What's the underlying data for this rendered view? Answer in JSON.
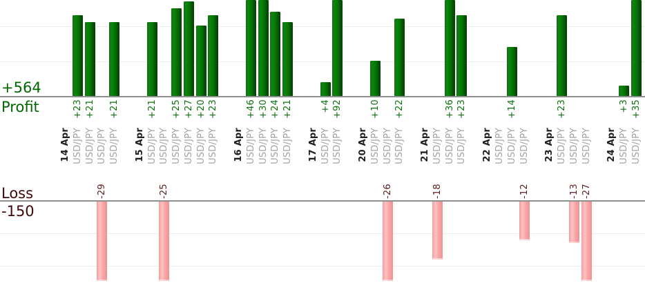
{
  "chart_data": {
    "type": "bar",
    "layout": "dual horizontal-axis chart: profit bars grow up from upper axis, loss bars grow down from lower axis; tall bars clipped by visible area; x labels rotated 90deg",
    "profit": {
      "axis_title": "Profit",
      "display_total": "+564",
      "total": 564,
      "gridline_values": [
        10,
        20
      ]
    },
    "loss": {
      "axis_title": "Loss",
      "display_total": "-150",
      "total": -150,
      "gridline_values": [
        -10,
        -20
      ]
    },
    "groups": [
      {
        "date": "14 Apr",
        "trades": [
          {
            "symbol": "USD/JPY",
            "value": 23,
            "label": "+23"
          },
          {
            "symbol": "USD/JPY",
            "value": 21,
            "label": "+21"
          },
          {
            "symbol": "USD/JPY",
            "value": -29,
            "label": "-29"
          },
          {
            "symbol": "USD/JPY",
            "value": 21,
            "label": "+21"
          }
        ]
      },
      {
        "date": "15 Apr",
        "trades": [
          {
            "symbol": "USD/JPY",
            "value": 21,
            "label": "+21"
          },
          {
            "symbol": "USD/JPY",
            "value": -25,
            "label": "-25"
          },
          {
            "symbol": "USD/JPY",
            "value": 25,
            "label": "+25"
          },
          {
            "symbol": "USD/JPY",
            "value": 27,
            "label": "+27"
          },
          {
            "symbol": "USD/JPY",
            "value": 20,
            "label": "+20"
          },
          {
            "symbol": "USD/JPY",
            "value": 23,
            "label": "+23"
          }
        ]
      },
      {
        "date": "16 Apr",
        "trades": [
          {
            "symbol": "USD/JPY",
            "value": 46,
            "label": "+46"
          },
          {
            "symbol": "USD/JPY",
            "value": 30,
            "label": "+30"
          },
          {
            "symbol": "USD/JPY",
            "value": 24,
            "label": "+24"
          },
          {
            "symbol": "USD/JPY",
            "value": 21,
            "label": "+21"
          }
        ]
      },
      {
        "date": "17 Apr",
        "trades": [
          {
            "symbol": "USD/JPY",
            "value": 4,
            "label": "+4"
          },
          {
            "symbol": "USD/JPY",
            "value": 92,
            "label": "+92"
          }
        ]
      },
      {
        "date": "20 Apr",
        "trades": [
          {
            "symbol": "USD/JPY",
            "value": 10,
            "label": "+10"
          },
          {
            "symbol": "USD/JPY",
            "value": -26,
            "label": "-26"
          },
          {
            "symbol": "USD/JPY",
            "value": 22,
            "label": "+22"
          }
        ]
      },
      {
        "date": "21 Apr",
        "trades": [
          {
            "symbol": "USD/JPY",
            "value": -18,
            "label": "-18"
          },
          {
            "symbol": "USD/JPY",
            "value": 36,
            "label": "+36"
          },
          {
            "symbol": "USD/JPY",
            "value": 23,
            "label": "+23"
          }
        ]
      },
      {
        "date": "22 Apr",
        "trades": [
          {
            "symbol": "USD/JPY",
            "value": 0,
            "label": ""
          },
          {
            "symbol": "USD/JPY",
            "value": 14,
            "label": "+14"
          },
          {
            "symbol": "USD/JPY",
            "value": -12,
            "label": "-12"
          }
        ]
      },
      {
        "date": "23 Apr",
        "trades": [
          {
            "symbol": "USD/JPY",
            "value": 23,
            "label": "+23"
          },
          {
            "symbol": "USD/JPY",
            "value": -13,
            "label": "-13"
          },
          {
            "symbol": "USD/JPY",
            "value": -27,
            "label": "-27"
          }
        ]
      },
      {
        "date": "24 Apr",
        "trades": [
          {
            "symbol": "USD/JPY",
            "value": 3,
            "label": "+3"
          },
          {
            "symbol": "USD/JPY",
            "value": 35,
            "label": "+35"
          }
        ]
      }
    ]
  },
  "colors": {
    "profit_text": "#006600",
    "profit_value_text": "#0d720d",
    "loss_text": "#400808",
    "loss_value_text": "#5a1c1c",
    "date_text": "#1f1f1f",
    "symbol_text": "#a3a3a3",
    "axis_line": "#8f8f8f",
    "gridline": "#ededed",
    "profit_bar_1": "#1b6a1b",
    "profit_bar_2": "#0a870a",
    "profit_bar_3": "#077207",
    "profit_bar_4": "#053c05",
    "loss_bar_1": "#f49c9c",
    "loss_bar_2": "#ffc2c2",
    "loss_bar_3": "#f7a7a7",
    "loss_bar_4": "#ef9292"
  }
}
